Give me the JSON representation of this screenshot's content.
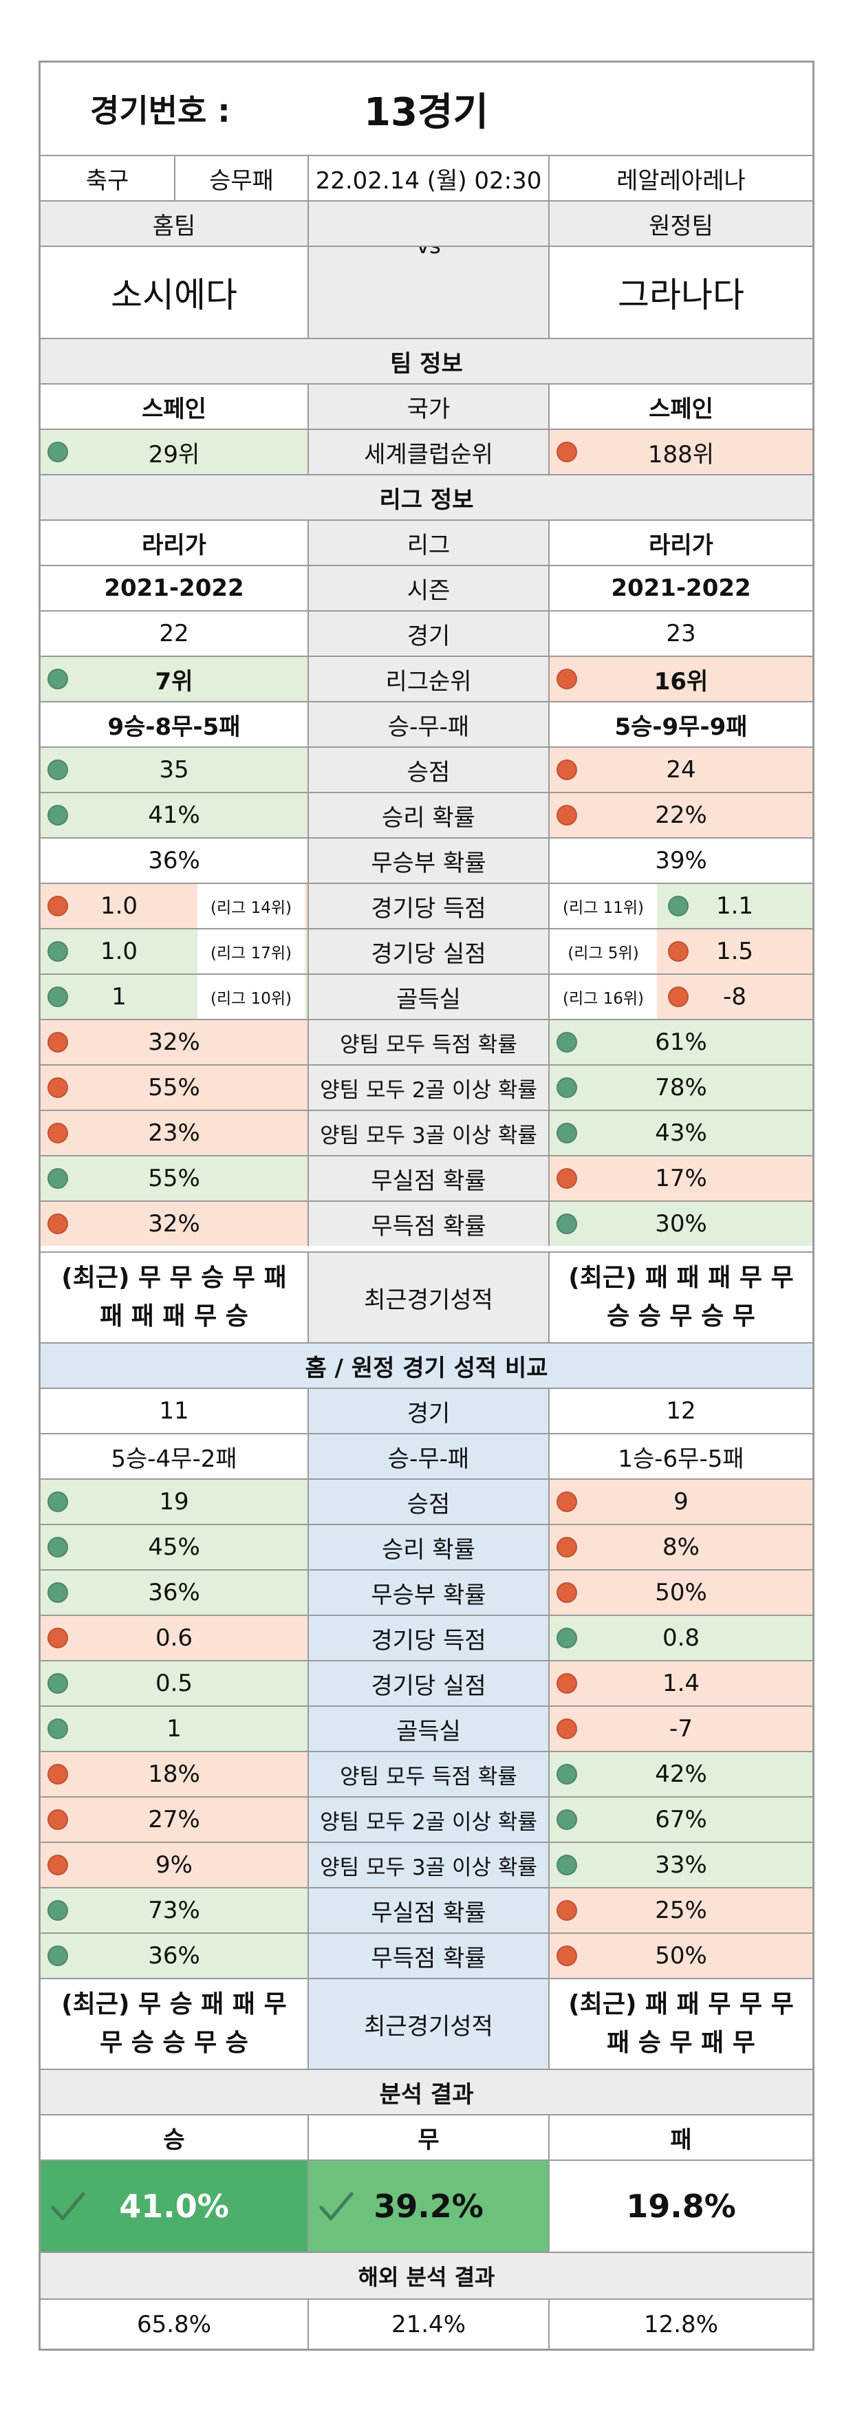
{
  "header": {
    "label": "경기번호 :",
    "number": "13경기"
  },
  "meta": {
    "sport": "축구",
    "bet_type": "승무패",
    "datetime": "22.02.14 (월) 02:30",
    "venue": "레알레아레나"
  },
  "teams": {
    "home_label": "홈팀",
    "away_label": "원정팀",
    "home": "소시에다",
    "away": "그라나다",
    "vs": "vs"
  },
  "team_info": {
    "title": "팀 정보",
    "country": {
      "label": "국가",
      "home": "스페인",
      "away": "스페인"
    },
    "world_rank": {
      "label": "세계클럽순위",
      "home": "29위",
      "away": "188위"
    }
  },
  "league_info": {
    "title": "리그 정보",
    "rows": [
      {
        "label": "리그",
        "home": "라리가",
        "away": "라리가"
      },
      {
        "label": "시즌",
        "home": "2021-2022",
        "away": "2021-2022"
      },
      {
        "label": "경기",
        "home": "22",
        "away": "23"
      },
      {
        "label": "리그순위",
        "home": "7위",
        "away": "16위"
      },
      {
        "label": "승-무-패",
        "home": "9승-8무-5패",
        "away": "5승-9무-9패"
      },
      {
        "label": "승점",
        "home": "35",
        "away": "24"
      },
      {
        "label": "승리 확률",
        "home": "41%",
        "away": "22%"
      },
      {
        "label": "무승부 확률",
        "home": "36%",
        "away": "39%"
      },
      {
        "label": "경기당 득점",
        "home": "1.0",
        "home_rank": "(리그 14위)",
        "away": "1.1",
        "away_rank": "(리그 11위)"
      },
      {
        "label": "경기당 실점",
        "home": "1.0",
        "home_rank": "(리그 17위)",
        "away": "1.5",
        "away_rank": "(리그 5위)"
      },
      {
        "label": "골득실",
        "home": "1",
        "home_rank": "(리그 10위)",
        "away": "-8",
        "away_rank": "(리그 16위)"
      },
      {
        "label": "양팀 모두 득점 확률",
        "home": "32%",
        "away": "61%"
      },
      {
        "label": "양팀 모두 2골 이상 확률",
        "home": "55%",
        "away": "78%"
      },
      {
        "label": "양팀 모두 3골 이상 확률",
        "home": "23%",
        "away": "43%"
      },
      {
        "label": "무실점 확률",
        "home": "55%",
        "away": "17%"
      },
      {
        "label": "무득점 확률",
        "home": "32%",
        "away": "30%"
      }
    ],
    "recent": {
      "label": "최근경기성적",
      "home_line1": "(최근) 무 무 승 무 패",
      "home_line2": "패 패 패 무 승",
      "away_line1": "(최근) 패 패 패 무 무",
      "away_line2": "승 승 무 승 무"
    }
  },
  "home_away": {
    "title": "홈 / 원정 경기 성적 비교",
    "rows": [
      {
        "label": "경기",
        "home": "11",
        "away": "12"
      },
      {
        "label": "승-무-패",
        "home": "5승-4무-2패",
        "away": "1승-6무-5패"
      },
      {
        "label": "승점",
        "home": "19",
        "away": "9"
      },
      {
        "label": "승리 확률",
        "home": "45%",
        "away": "8%"
      },
      {
        "label": "무승부 확률",
        "home": "36%",
        "away": "50%"
      },
      {
        "label": "경기당 득점",
        "home": "0.6",
        "away": "0.8"
      },
      {
        "label": "경기당 실점",
        "home": "0.5",
        "away": "1.4"
      },
      {
        "label": "골득실",
        "home": "1",
        "away": "-7"
      },
      {
        "label": "양팀 모두 득점 확률",
        "home": "18%",
        "away": "42%"
      },
      {
        "label": "양팀 모두 2골 이상 확률",
        "home": "27%",
        "away": "67%"
      },
      {
        "label": "양팀 모두 3골 이상 확률",
        "home": "9%",
        "away": "33%"
      },
      {
        "label": "무실점 확률",
        "home": "73%",
        "away": "25%"
      },
      {
        "label": "무득점 확률",
        "home": "36%",
        "away": "50%"
      }
    ],
    "recent": {
      "label": "최근경기성적",
      "home_line1": "(최근) 무 승 패 패 무",
      "home_line2": "무 승 승 무 승",
      "away_line1": "(최근) 패 패 무 무 무",
      "away_line2": "패 승 무 패 무"
    }
  },
  "analysis": {
    "title": "분석 결과",
    "win_label": "승",
    "draw_label": "무",
    "loss_label": "패",
    "win": "41.0%",
    "draw": "39.2%",
    "loss": "19.8%"
  },
  "overseas": {
    "title": "해외 분석 결과",
    "win": "65.8%",
    "draw": "21.4%",
    "loss": "12.8%"
  },
  "colors": {
    "good": "#5b9e7c",
    "bad": "#e0623c",
    "good_bg": "#e2efda",
    "bad_bg": "#fbe2d5",
    "highlight": "#6cc17c",
    "highlight_dark": "#4caf6a"
  }
}
